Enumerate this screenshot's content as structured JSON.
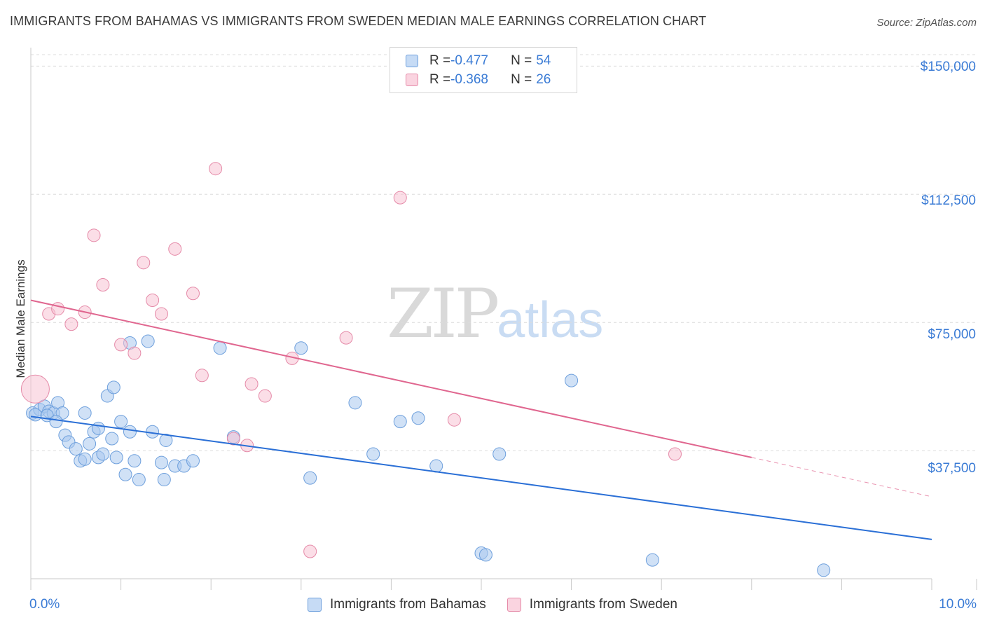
{
  "header": {
    "title": "IMMIGRANTS FROM BAHAMAS VS IMMIGRANTS FROM SWEDEN MEDIAN MALE EARNINGS CORRELATION CHART",
    "source": "Source: ZipAtlas.com"
  },
  "watermark": {
    "zip": "ZIP",
    "atlas": "atlas"
  },
  "legend": {
    "rows": [
      {
        "r_label": "R = ",
        "r_value": "-0.477",
        "n_label": "N = ",
        "n_value": "54",
        "color": "#a9c8ef",
        "border": "#6d9fdc"
      },
      {
        "r_label": "R = ",
        "r_value": "-0.368",
        "n_label": "N = ",
        "n_value": "26",
        "color": "#f7c3d3",
        "border": "#e58aa8"
      }
    ]
  },
  "axes": {
    "ylabel": "Median Male Earnings",
    "yticks": [
      "$150,000",
      "$112,500",
      "$75,000",
      "$37,500"
    ],
    "xticks": [
      "0.0%",
      "10.0%"
    ]
  },
  "chart_data": {
    "type": "scatter",
    "title": "IMMIGRANTS FROM BAHAMAS VS IMMIGRANTS FROM SWEDEN MEDIAN MALE EARNINGS CORRELATION CHART",
    "xlabel": "",
    "ylabel": "Median Male Earnings",
    "xlim": [
      0,
      10
    ],
    "ylim": [
      0,
      155000
    ],
    "ytick_values": [
      37500,
      75000,
      112500,
      150000
    ],
    "xtick_values": [
      0,
      10
    ],
    "grid": true,
    "legend_position": "top-center",
    "series": [
      {
        "name": "Immigrants from Bahamas",
        "color": "#a9c8ef",
        "stroke": "#6d9fdc",
        "line_color": "#2a6fd6",
        "R": -0.477,
        "N": 54,
        "trend": {
          "x0": 0.0,
          "y0": 47500,
          "x1": 10.0,
          "y1": 11500,
          "solid_until": 10.0
        },
        "points": [
          [
            0.02,
            48500
          ],
          [
            0.1,
            49500
          ],
          [
            0.05,
            48000
          ],
          [
            0.15,
            50500
          ],
          [
            0.2,
            49000
          ],
          [
            0.25,
            48500
          ],
          [
            0.3,
            51500
          ],
          [
            0.35,
            48500
          ],
          [
            0.18,
            47800
          ],
          [
            0.28,
            46000
          ],
          [
            0.38,
            42000
          ],
          [
            0.42,
            40000
          ],
          [
            0.5,
            38000
          ],
          [
            0.55,
            34500
          ],
          [
            0.6,
            35000
          ],
          [
            0.65,
            39500
          ],
          [
            0.7,
            43000
          ],
          [
            0.75,
            35500
          ],
          [
            0.8,
            36500
          ],
          [
            0.9,
            41000
          ],
          [
            0.95,
            35500
          ],
          [
            0.6,
            48500
          ],
          [
            0.75,
            44000
          ],
          [
            0.85,
            53500
          ],
          [
            0.92,
            56000
          ],
          [
            1.1,
            69000
          ],
          [
            1.3,
            69500
          ],
          [
            1.0,
            46000
          ],
          [
            1.1,
            43000
          ],
          [
            1.15,
            34500
          ],
          [
            1.05,
            30500
          ],
          [
            1.2,
            29000
          ],
          [
            1.35,
            43000
          ],
          [
            1.45,
            34000
          ],
          [
            1.48,
            29000
          ],
          [
            1.5,
            40500
          ],
          [
            1.6,
            33000
          ],
          [
            1.7,
            33000
          ],
          [
            1.8,
            34500
          ],
          [
            2.1,
            67500
          ],
          [
            2.25,
            41500
          ],
          [
            3.0,
            67500
          ],
          [
            3.1,
            29500
          ],
          [
            3.6,
            51500
          ],
          [
            3.8,
            36500
          ],
          [
            4.1,
            46000
          ],
          [
            4.3,
            47000
          ],
          [
            4.5,
            33000
          ],
          [
            5.2,
            36500
          ],
          [
            6.0,
            58000
          ],
          [
            5.0,
            7500
          ],
          [
            5.05,
            7000
          ],
          [
            6.9,
            5500
          ],
          [
            8.8,
            2500
          ]
        ]
      },
      {
        "name": "Immigrants from Sweden",
        "color": "#f7c3d3",
        "stroke": "#e58aa8",
        "line_color": "#e0668f",
        "R": -0.368,
        "N": 26,
        "trend": {
          "x0": 0.0,
          "y0": 81500,
          "x1": 10.0,
          "y1": 24000,
          "solid_until": 8.0
        },
        "points": [
          [
            0.05,
            55500
          ],
          [
            0.2,
            77500
          ],
          [
            0.3,
            79000
          ],
          [
            0.45,
            74500
          ],
          [
            0.6,
            78000
          ],
          [
            0.7,
            100500
          ],
          [
            0.8,
            86000
          ],
          [
            1.0,
            68500
          ],
          [
            1.15,
            66000
          ],
          [
            1.25,
            92500
          ],
          [
            1.35,
            81500
          ],
          [
            1.45,
            77500
          ],
          [
            1.6,
            96500
          ],
          [
            1.8,
            83500
          ],
          [
            1.9,
            59500
          ],
          [
            2.05,
            120000
          ],
          [
            2.25,
            41000
          ],
          [
            2.4,
            39000
          ],
          [
            2.45,
            57000
          ],
          [
            2.6,
            53500
          ],
          [
            2.9,
            64500
          ],
          [
            3.1,
            8000
          ],
          [
            3.5,
            70500
          ],
          [
            4.1,
            111500
          ],
          [
            4.7,
            46500
          ],
          [
            7.15,
            36500
          ]
        ]
      }
    ]
  },
  "bottom_legend": [
    {
      "label": "Immigrants from Bahamas",
      "color": "#a9c8ef",
      "border": "#6d9fdc"
    },
    {
      "label": "Immigrants from Sweden",
      "color": "#f7c3d3",
      "border": "#e58aa8"
    }
  ]
}
